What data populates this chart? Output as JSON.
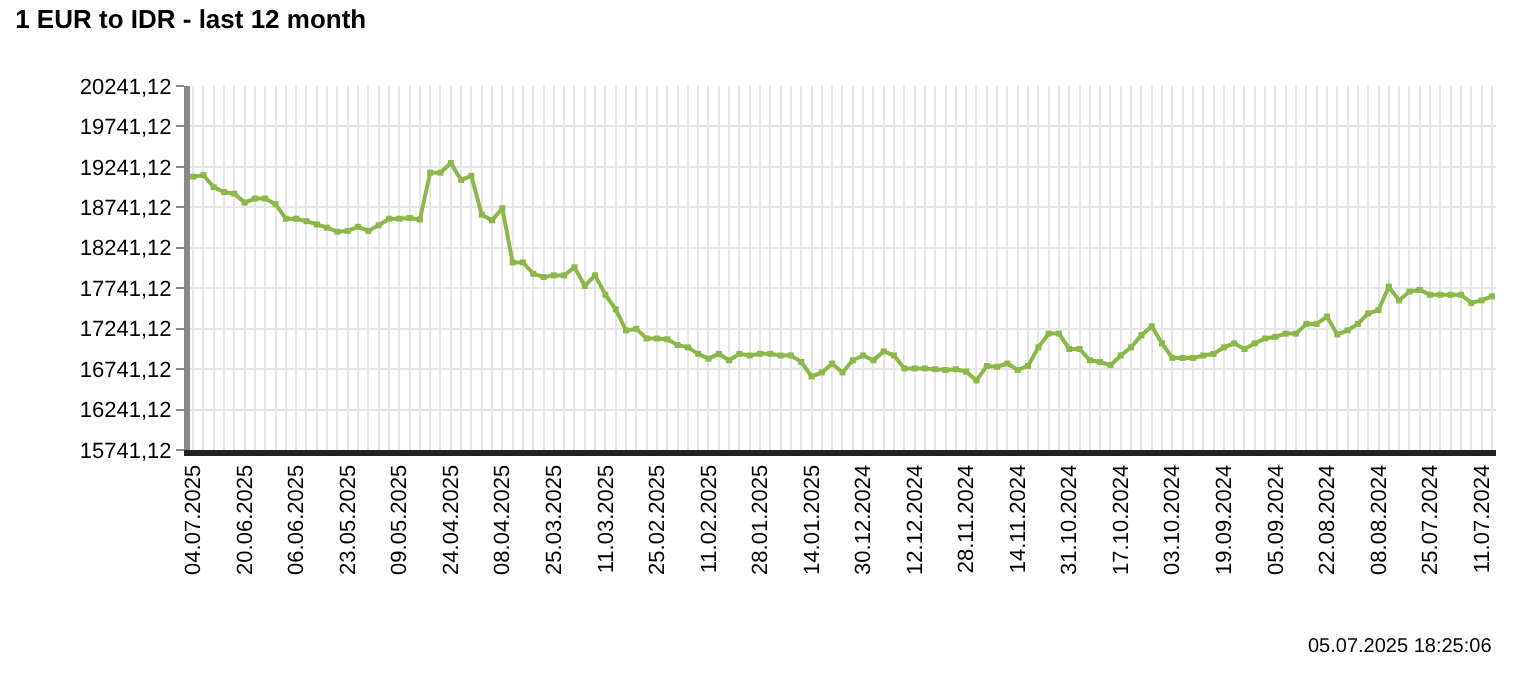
{
  "chart_data": {
    "type": "line",
    "title": "1 EUR to IDR - last 12 month",
    "categories": [
      "04.07.2025",
      null,
      null,
      null,
      null,
      "20.06.2025",
      null,
      null,
      null,
      null,
      "06.06.2025",
      null,
      null,
      null,
      null,
      "23.05.2025",
      null,
      null,
      null,
      null,
      "09.05.2025",
      null,
      null,
      null,
      null,
      "24.04.2025",
      null,
      null,
      null,
      null,
      "08.04.2025",
      null,
      null,
      null,
      null,
      "25.03.2025",
      null,
      null,
      null,
      null,
      "11.03.2025",
      null,
      null,
      null,
      null,
      "25.02.2025",
      null,
      null,
      null,
      null,
      "11.02.2025",
      null,
      null,
      null,
      null,
      "28.01.2025",
      null,
      null,
      null,
      null,
      "14.01.2025",
      null,
      null,
      null,
      null,
      "30.12.2024",
      null,
      null,
      null,
      null,
      "12.12.2024",
      null,
      null,
      null,
      null,
      "28.11.2024",
      null,
      null,
      null,
      null,
      "14.11.2024",
      null,
      null,
      null,
      null,
      "31.10.2024",
      null,
      null,
      null,
      null,
      "17.10.2024",
      null,
      null,
      null,
      null,
      "03.10.2024",
      null,
      null,
      null,
      null,
      "19.09.2024",
      null,
      null,
      null,
      null,
      "05.09.2024",
      null,
      null,
      null,
      null,
      "22.08.2024",
      null,
      null,
      null,
      null,
      "08.08.2024",
      null,
      null,
      null,
      null,
      "25.07.2024",
      null,
      null,
      null,
      null,
      "11.07.2024",
      null
    ],
    "series": [
      {
        "color": "#8cb84a",
        "values": [
          19120,
          19140,
          18990,
          18930,
          18910,
          18800,
          18850,
          18850,
          18780,
          18600,
          18600,
          18570,
          18530,
          18490,
          18440,
          18450,
          18500,
          18450,
          18520,
          18600,
          18600,
          18610,
          18590,
          19170,
          19170,
          19290,
          19080,
          19130,
          18650,
          18580,
          18730,
          18060,
          18060,
          17920,
          17880,
          17900,
          17900,
          18000,
          17770,
          17900,
          17660,
          17480,
          17220,
          17240,
          17120,
          17120,
          17110,
          17040,
          17010,
          16930,
          16870,
          16930,
          16850,
          16930,
          16910,
          16930,
          16930,
          16910,
          16910,
          16830,
          16650,
          16700,
          16810,
          16700,
          16850,
          16910,
          16850,
          16960,
          16910,
          16750,
          16750,
          16750,
          16740,
          16730,
          16740,
          16710,
          16600,
          16780,
          16770,
          16810,
          16730,
          16780,
          17010,
          17180,
          17180,
          16990,
          16990,
          16850,
          16830,
          16790,
          16910,
          17010,
          17160,
          17270,
          17060,
          16880,
          16880,
          16880,
          16910,
          16930,
          17010,
          17060,
          16990,
          17060,
          17120,
          17140,
          17180,
          17180,
          17300,
          17300,
          17390,
          17170,
          17220,
          17300,
          17430,
          17470,
          17760,
          17590,
          17700,
          17720,
          17660,
          17660,
          17660,
          17660,
          17560,
          17590,
          17640
        ]
      }
    ],
    "ylim": [
      15741.12,
      20241.12
    ],
    "yticks": [
      {
        "value": 15741.12,
        "label": "15741,12"
      },
      {
        "value": 16241.12,
        "label": "16241,12"
      },
      {
        "value": 16741.12,
        "label": "16741,12"
      },
      {
        "value": 17241.12,
        "label": "17241,12"
      },
      {
        "value": 17741.12,
        "label": "17741,12"
      },
      {
        "value": 18241.12,
        "label": "18241,12"
      },
      {
        "value": 18741.12,
        "label": "18741,12"
      },
      {
        "value": 19241.12,
        "label": "19241,12"
      },
      {
        "value": 19741.12,
        "label": "19741,12"
      },
      {
        "value": 20241.12,
        "label": "20241,12"
      }
    ],
    "grid": true,
    "marker": "square",
    "line_style": "solid",
    "annotations": [
      "05.07.2025 18:25:06"
    ]
  }
}
